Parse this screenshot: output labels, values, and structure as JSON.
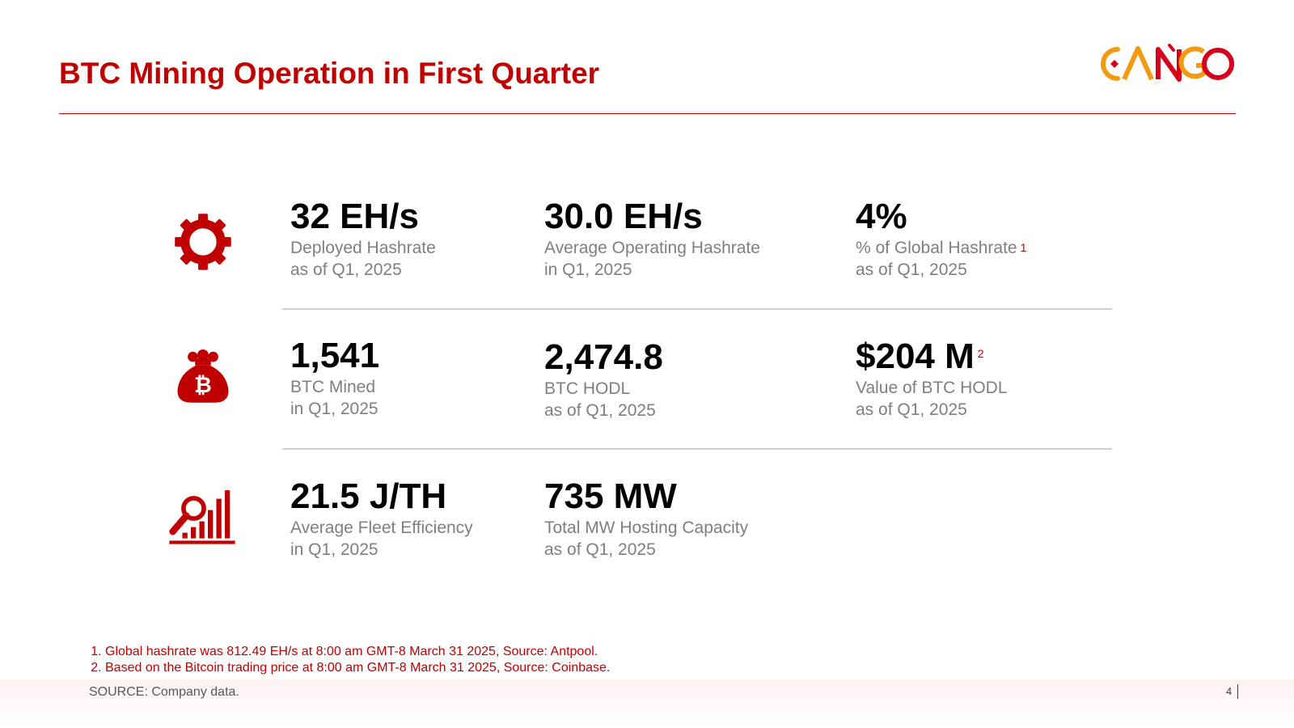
{
  "header": {
    "title": "BTC Mining Operation in First Quarter",
    "logo_text": "CANGO"
  },
  "colors": {
    "accent": "#c00000",
    "logo_orange": "#f29a12",
    "logo_red": "#d6001c",
    "label_gray": "#7f7f7f"
  },
  "rows": [
    {
      "icon": "gear-icon",
      "metrics": [
        {
          "value": "32 EH/s",
          "label": "Deployed Hashrate",
          "sub": "as of Q1, 2025",
          "note": ""
        },
        {
          "value": "30.0 EH/s",
          "label": "Average Operating Hashrate",
          "sub": "in Q1, 2025",
          "note": ""
        },
        {
          "value": "4%",
          "label": "% of Global Hashrate",
          "sub": "as of Q1, 2025",
          "note": "1"
        }
      ]
    },
    {
      "icon": "bitcoin-money-bag-icon",
      "metrics": [
        {
          "value": "1,541",
          "label": "BTC Mined",
          "sub": "in Q1, 2025",
          "note": ""
        },
        {
          "value": "2,474.8",
          "label": "BTC HODL",
          "sub": "as of Q1, 2025",
          "note": ""
        },
        {
          "value": "$204 M",
          "label": "Value of BTC HODL",
          "sub": "as of Q1, 2025",
          "note": "2"
        }
      ]
    },
    {
      "icon": "efficiency-chart-magnifier-icon",
      "metrics": [
        {
          "value": "21.5 J/TH",
          "label": "Average Fleet Efficiency",
          "sub": "in Q1, 2025",
          "note": ""
        },
        {
          "value": "735 MW",
          "label": "Total MW Hosting Capacity",
          "sub": "as of Q1, 2025",
          "note": ""
        }
      ]
    }
  ],
  "footnotes": [
    "Global hashrate was 812.49 EH/s at 8:00 am GMT-8 March 31 2025, Source: Antpool.",
    "Based on the Bitcoin trading price at 8:00 am GMT-8 March 31 2025, Source: Coinbase."
  ],
  "footer": {
    "source": "SOURCE: Company data.",
    "page_number": "4"
  }
}
